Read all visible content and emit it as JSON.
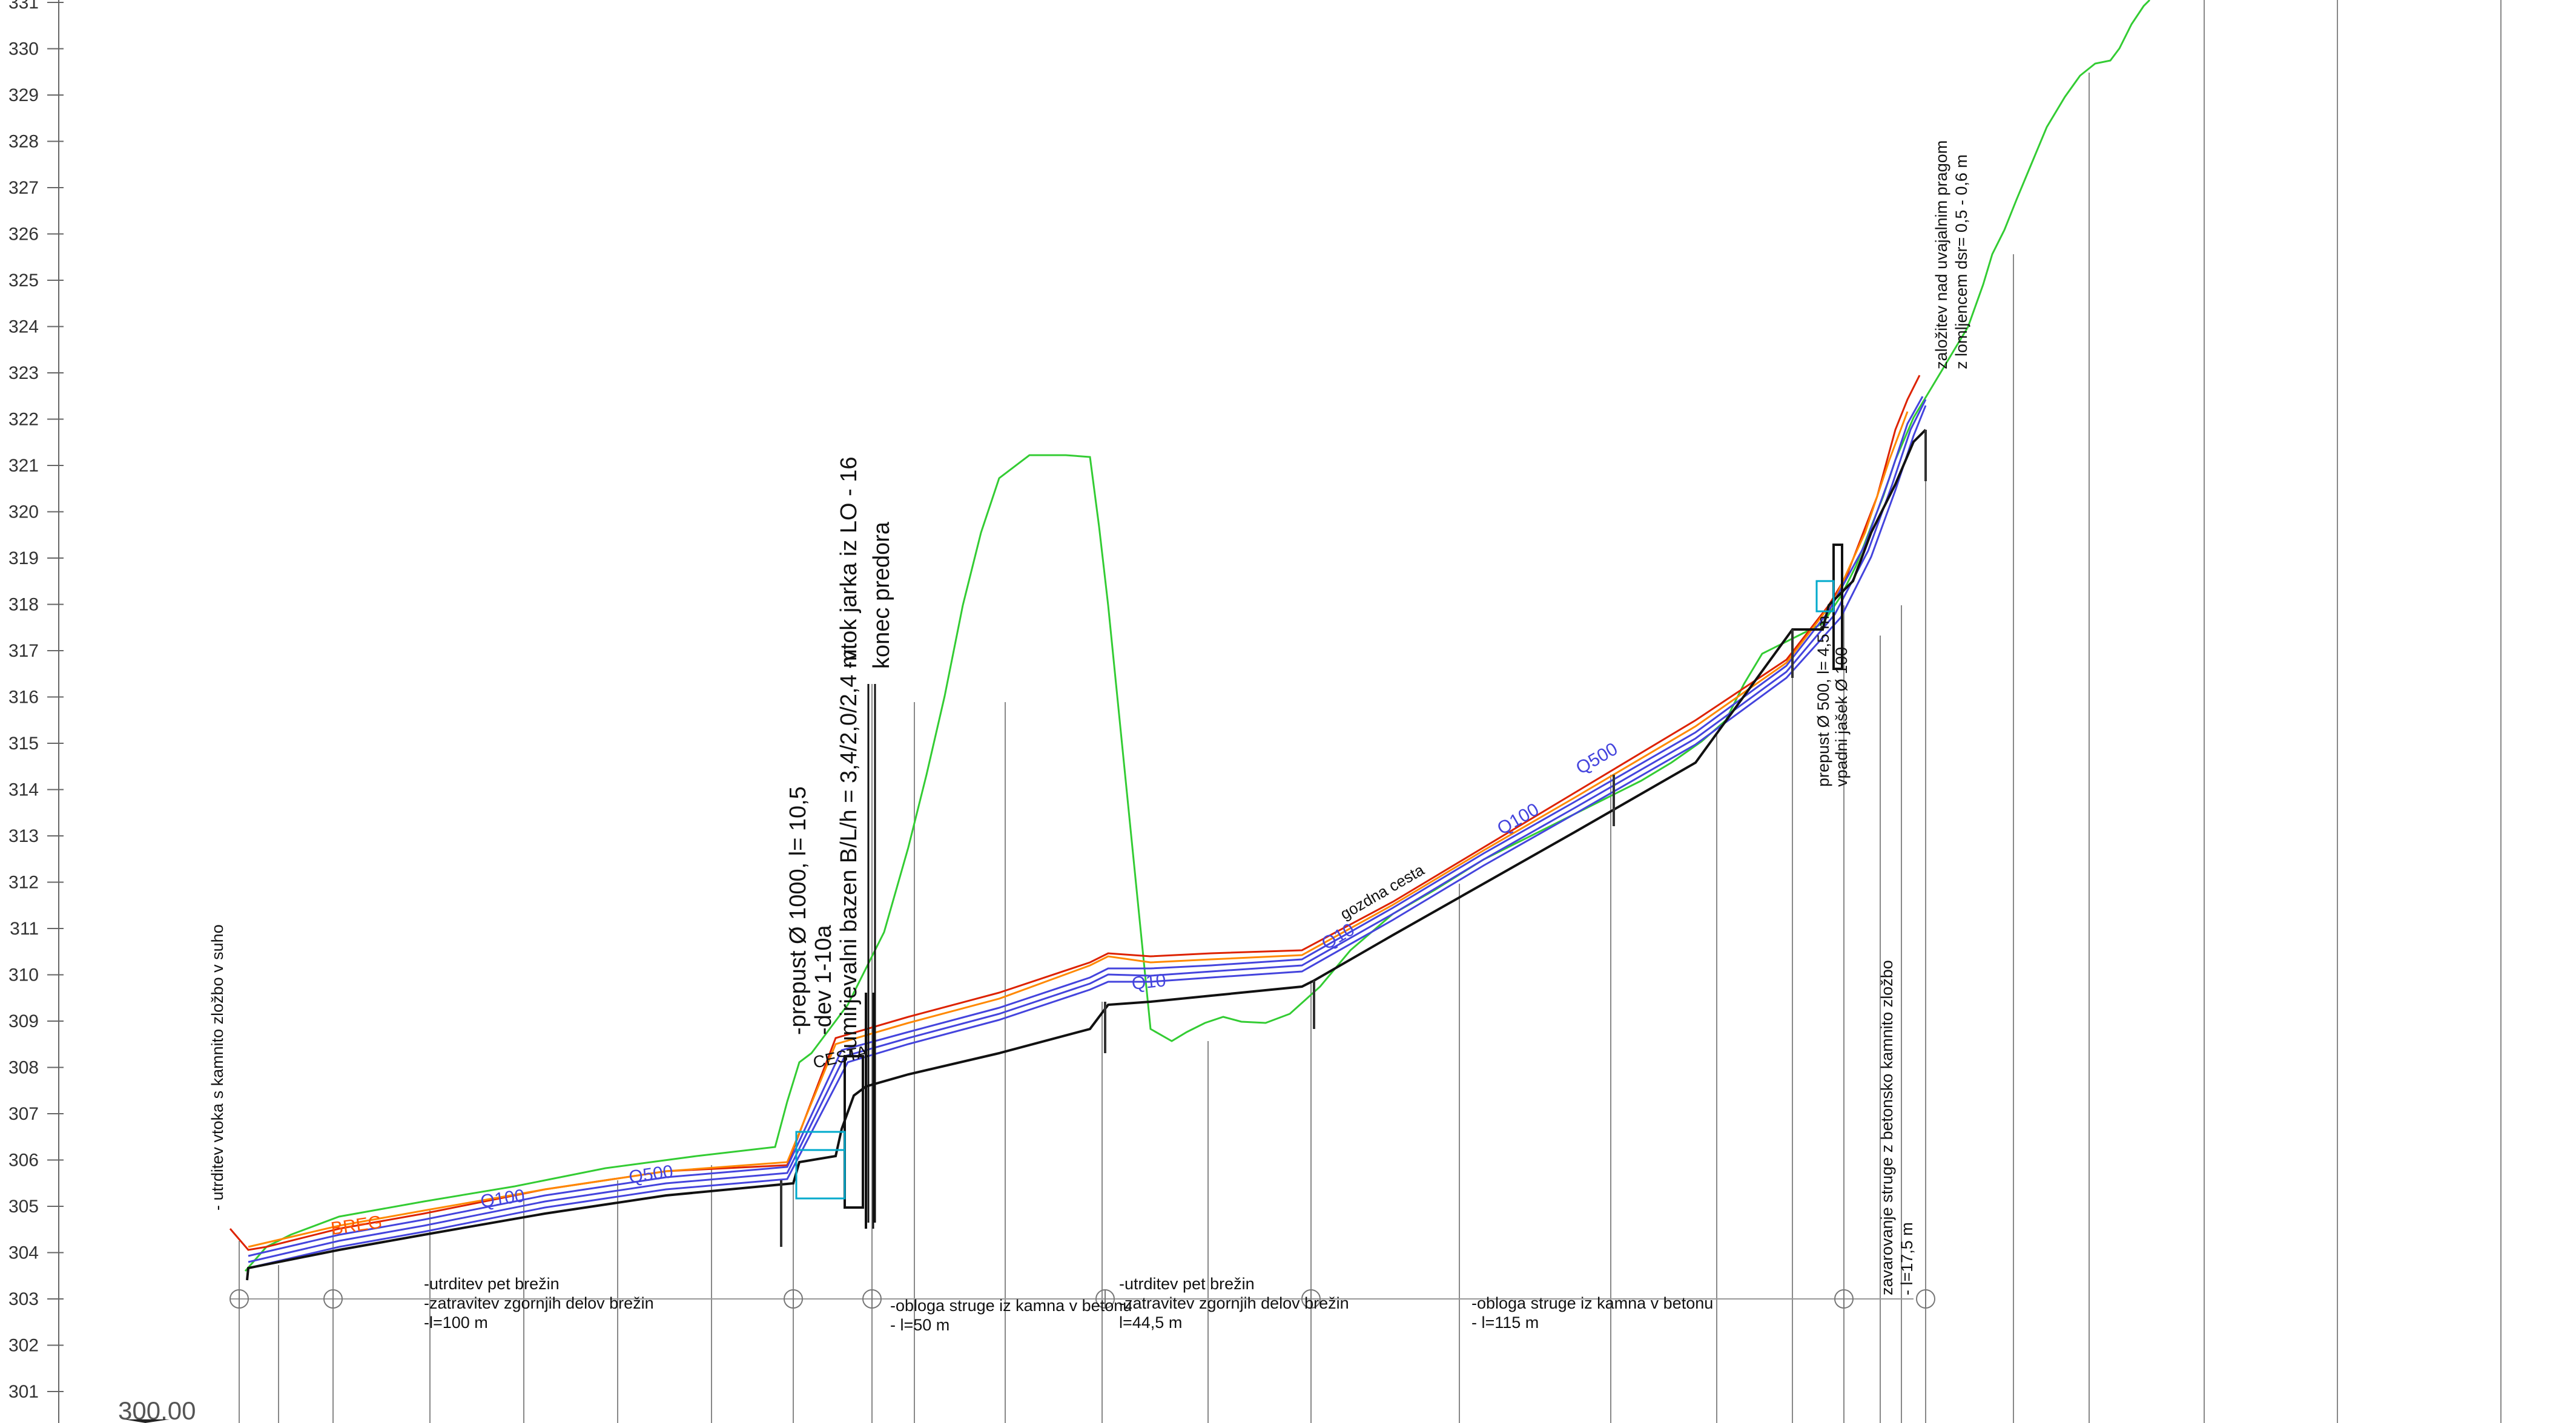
{
  "drawing": {
    "datum": "300.00",
    "y_axis": {
      "ticks": [
        301,
        302,
        303,
        304,
        305,
        306,
        307,
        308,
        309,
        310,
        311,
        312,
        313,
        314,
        315,
        316,
        317,
        318,
        319,
        320,
        321,
        322,
        323,
        324,
        325,
        326,
        327,
        328,
        329,
        330,
        331
      ]
    },
    "colors": {
      "terrain": "#33cc33",
      "bed": "#111111",
      "flood_line": "#dd2200",
      "orange_line": "#ff8800",
      "water_levels": "#4444dd",
      "structure_cyan": "#00aacc",
      "grid": "#888888"
    },
    "water_level_labels": [
      {
        "text": "Q500",
        "color": "#4444dd"
      },
      {
        "text": "Q100",
        "color": "#4444dd"
      },
      {
        "text": "Q10",
        "color": "#4444dd"
      },
      {
        "text": "Q100",
        "color": "#4444dd"
      },
      {
        "text": "Q500",
        "color": "#4444dd"
      },
      {
        "text": "Q10",
        "color": "#4444dd"
      },
      {
        "text": "BREG",
        "color": "#ff5500"
      }
    ],
    "road_labels": {
      "cesta": "CESTA",
      "gozdna_cesta": "gozdna cesta"
    },
    "notes": {
      "utrditev_vtoka": "- utrditev vtoka s kamnito zložbo v suho",
      "section1": [
        "-utrditev pet brežin",
        "-zatravitev zgornjih delov brežin",
        "-l=100 m"
      ],
      "prepust": [
        "-prepust Ø 1000, l= 10,5",
        "-dev 1-10a",
        "-umirjevalni bazen B/L/h = 3,4/2,0/2,4 m"
      ],
      "vtok": [
        "-vtok jarka iz  LO - 16",
        "konec predora"
      ],
      "section2": [
        "-obloga struge iz kamna v betonu",
        " - l=50 m"
      ],
      "section3": [
        "-utrditev pet brežin",
        "-zatravitev zgornjih delov brežin",
        "l=44,5 m"
      ],
      "section4": [
        "-obloga struge iz kamna v betonu",
        "- l=115 m"
      ],
      "prepust2": [
        "prepust Ø 500, l= 4,5 m",
        "vpadni jašek Ø 100"
      ],
      "zavarovanje": [
        "zavarovanje struge z betonsko kamnito zložbo",
        "- l=17,5 m"
      ],
      "zalozitev": [
        "založitev nad uvajalnim pragom",
        "z lomljencem dsr= 0,5 - 0,6 m"
      ]
    }
  }
}
